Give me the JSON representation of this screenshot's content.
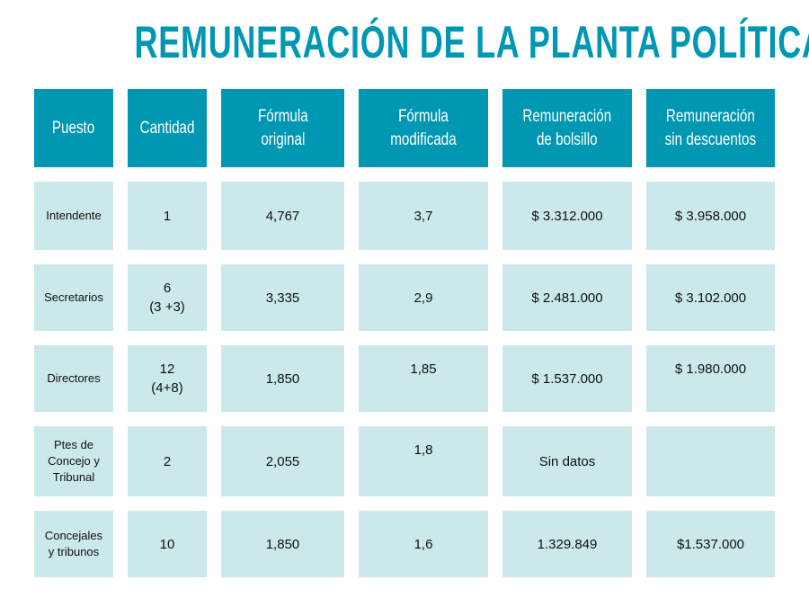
{
  "title": "REMUNERACIÓN DE LA PLANTA POLÍTICA",
  "headers": [
    "Puesto",
    "Cantidad",
    "Fórmula\noriginal",
    "Fórmula\nmodificada",
    "Remuneración\nde bolsillo",
    "Remuneración\nsin descuentos"
  ],
  "rows": [
    [
      "Intendente",
      "1",
      "4,767",
      "3,7",
      "$ 3.312.000",
      "$ 3.958.000"
    ],
    [
      "Secretarios",
      "6\n(3 +3)",
      "3,335",
      "2,9",
      "$ 2.481.000",
      "$ 3.102.000"
    ],
    [
      "Directores",
      "12\n(4+8)",
      "1,850",
      "1,85",
      "$ 1.537.000",
      "$ 1.980.000"
    ],
    [
      "Ptes de\nConcejo y\nTribunal",
      "2",
      "2,055",
      "1,8",
      "Sin datos",
      ""
    ],
    [
      "Concejales\ny tribunos",
      "10",
      "1,850",
      "1,6",
      "1.329.849",
      "$1.537.000"
    ]
  ],
  "colors": {
    "header": "#0097b2",
    "cell": "#cbe8ea"
  }
}
